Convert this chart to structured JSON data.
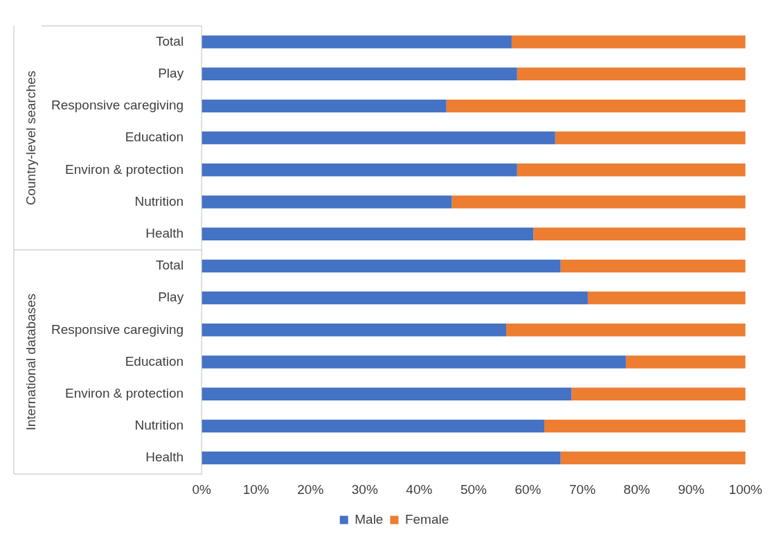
{
  "chart_data": {
    "type": "bar",
    "orientation": "horizontal",
    "stacked": true,
    "categories": [
      "Total",
      "Play",
      "Responsive caregiving",
      "Education",
      "Environ & protection",
      "Nutrition",
      "Health",
      "Total",
      "Play",
      "Responsive caregiving",
      "Education",
      "Environ & protection",
      "Nutrition",
      "Health"
    ],
    "series": [
      {
        "name": "Male",
        "color": "#4472c4",
        "values": [
          57,
          58,
          45,
          65,
          58,
          46,
          61,
          66,
          71,
          56,
          78,
          68,
          63,
          66
        ]
      },
      {
        "name": "Female",
        "color": "#ed7d31",
        "values": [
          43,
          42,
          55,
          35,
          42,
          54,
          39,
          34,
          29,
          44,
          22,
          32,
          37,
          34
        ]
      }
    ],
    "xlim": [
      0,
      100
    ],
    "xticks": [
      {
        "value": 0,
        "label": "0%"
      },
      {
        "value": 10,
        "label": "10%"
      },
      {
        "value": 20,
        "label": "20%"
      },
      {
        "value": 30,
        "label": "30%"
      },
      {
        "value": 40,
        "label": "40%"
      },
      {
        "value": 50,
        "label": "50%"
      },
      {
        "value": 60,
        "label": "60%"
      },
      {
        "value": 70,
        "label": "70%"
      },
      {
        "value": 80,
        "label": "80%"
      },
      {
        "value": 90,
        "label": "90%"
      },
      {
        "value": 100,
        "label": "100%"
      }
    ],
    "annotations": [
      "Country-level searches",
      "International databases"
    ],
    "legend": "bottom",
    "grid": false
  }
}
